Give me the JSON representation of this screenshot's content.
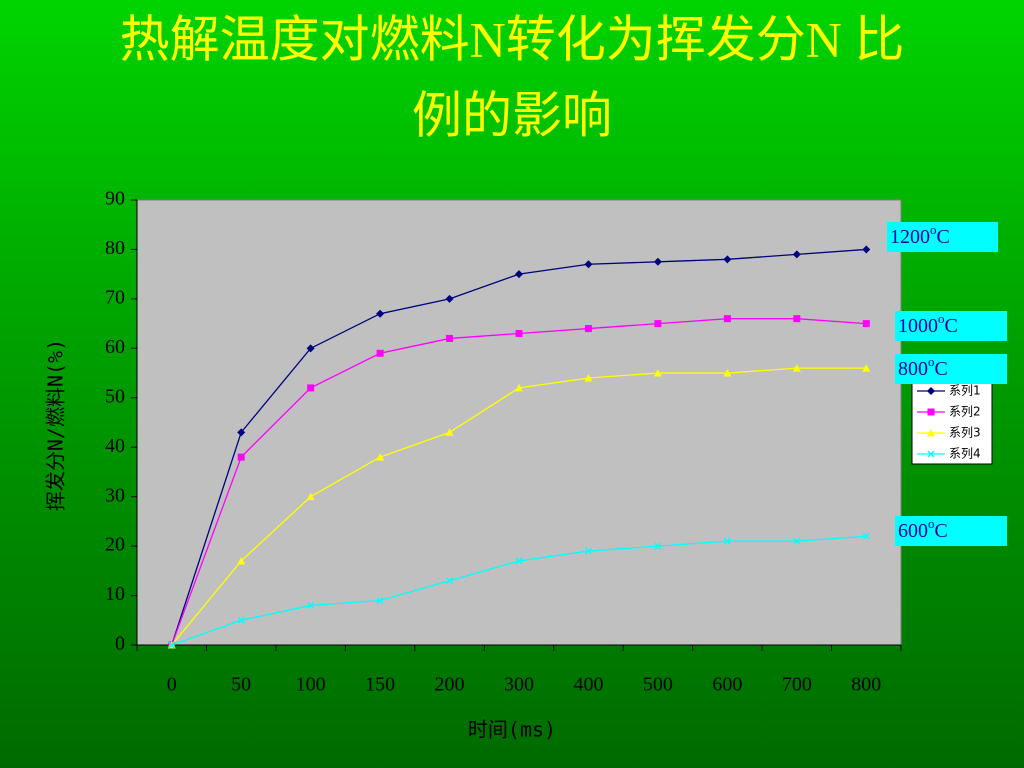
{
  "chart_data": {
    "type": "line",
    "title": [
      "热解温度对燃料N转化为挥发分N 比",
      "例的影响"
    ],
    "x_label": "时间(ms)",
    "y_label": "挥发分N/燃料N(%)",
    "categories": [
      "0",
      "50",
      "100",
      "150",
      "200",
      "300",
      "400",
      "500",
      "600",
      "700",
      "800"
    ],
    "ylim": [
      0,
      90
    ],
    "yticks": [
      0,
      10,
      20,
      30,
      40,
      50,
      60,
      70,
      80,
      90
    ],
    "series": [
      {
        "name": "系列1",
        "color": "#000080",
        "marker": "diamond",
        "values": [
          0,
          43,
          60,
          67,
          70,
          75,
          77,
          77.5,
          78,
          79,
          80
        ]
      },
      {
        "name": "系列2",
        "color": "#ff00ff",
        "marker": "square",
        "values": [
          0,
          38,
          52,
          59,
          62,
          63,
          64,
          65,
          66,
          66,
          65
        ]
      },
      {
        "name": "系列3",
        "color": "#ffff00",
        "marker": "triangle",
        "values": [
          0,
          17,
          30,
          38,
          43,
          52,
          54,
          55,
          55,
          56,
          56
        ]
      },
      {
        "name": "系列4",
        "color": "#00ffff",
        "marker": "x",
        "values": [
          0,
          5,
          8,
          9,
          13,
          17,
          19,
          20,
          21,
          21,
          22
        ]
      }
    ],
    "annotations": [
      {
        "text": "1200",
        "sup": "o",
        "unit": "C"
      },
      {
        "text": "1000",
        "sup": "o",
        "unit": "C"
      },
      {
        "text": "800",
        "sup": "o",
        "unit": "C"
      },
      {
        "text": "600",
        "sup": "o",
        "unit": "C"
      }
    ]
  }
}
